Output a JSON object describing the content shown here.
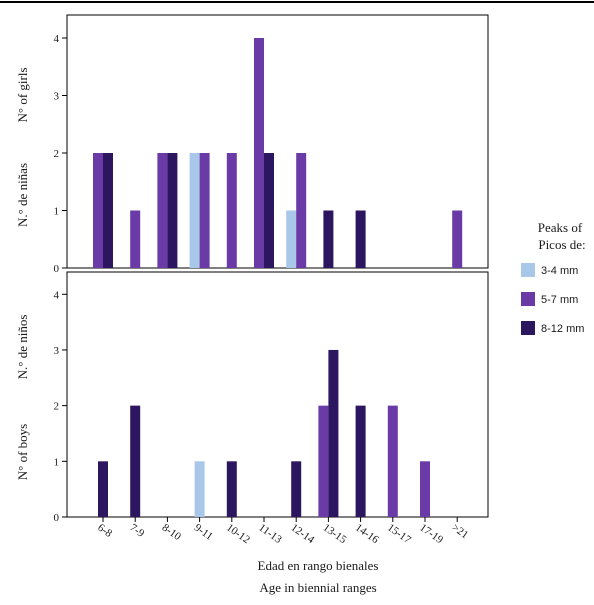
{
  "chart_data": {
    "type": "bar",
    "categories": [
      "6-8",
      "7-9",
      "8-10",
      "9-11",
      "10-12",
      "11-13",
      "12-14",
      "13-15",
      "14-16",
      "15-17",
      "17-19",
      ">21"
    ],
    "xlabel_es": "Edad en rango bienales",
    "xlabel_en": "Age in biennial ranges",
    "legend": {
      "title_en": "Peaks of",
      "title_es": "Picos de:",
      "entries": [
        {
          "name": "3-4 mm",
          "color": "#a9c7e8"
        },
        {
          "name": "5-7 mm",
          "color": "#6a3aa6"
        },
        {
          "name": "8-12 mm",
          "color": "#2c1660"
        }
      ]
    },
    "panels": [
      {
        "name": "girls",
        "ylabel_en": "N° of girls",
        "ylabel_es": "N.° de niñas",
        "yticks": [
          0,
          1,
          2,
          3,
          4
        ],
        "ylim": [
          0,
          4.4
        ],
        "series": [
          {
            "name": "3-4 mm",
            "values": [
              0,
              0,
              0,
              2,
              0,
              0,
              1,
              0,
              0,
              0,
              0,
              0
            ]
          },
          {
            "name": "5-7 mm",
            "values": [
              2,
              1,
              2,
              2,
              2,
              4,
              2,
              0,
              0,
              0,
              0,
              1
            ]
          },
          {
            "name": "8-12 mm",
            "values": [
              2,
              0,
              2,
              0,
              0,
              2,
              0,
              1,
              1,
              0,
              0,
              0
            ]
          }
        ]
      },
      {
        "name": "boys",
        "ylabel_en": "N° of boys",
        "ylabel_es": "N.° de niños",
        "yticks": [
          0,
          1,
          2,
          3,
          4
        ],
        "ylim": [
          0,
          4.4
        ],
        "series": [
          {
            "name": "3-4 mm",
            "values": [
              0,
              0,
              0,
              1,
              0,
              0,
              0,
              0,
              0,
              0,
              0,
              0
            ]
          },
          {
            "name": "5-7 mm",
            "values": [
              0,
              0,
              0,
              0,
              0,
              0,
              0,
              2,
              0,
              2,
              1,
              0
            ]
          },
          {
            "name": "8-12 mm",
            "values": [
              1,
              2,
              0,
              0,
              1,
              0,
              1,
              3,
              2,
              0,
              0,
              0
            ]
          }
        ]
      }
    ]
  }
}
